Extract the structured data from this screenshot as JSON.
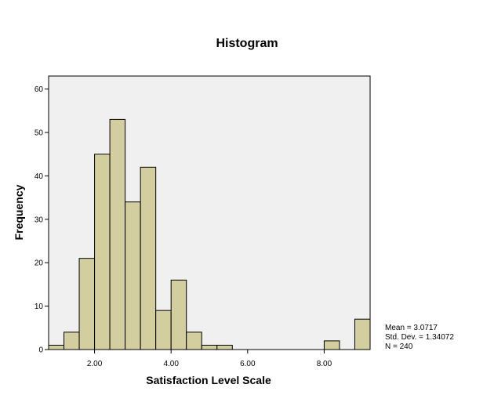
{
  "chart_data": {
    "type": "bar",
    "title": "Histogram",
    "xlabel": "Satisfaction Level Scale",
    "ylabel": "Frequency",
    "xlim": [
      0.8,
      9.2
    ],
    "ylim": [
      0,
      63
    ],
    "bin_width": 0.4,
    "bins": [
      {
        "x0": 0.8,
        "x1": 1.2,
        "value": 1
      },
      {
        "x0": 1.2,
        "x1": 1.6,
        "value": 4
      },
      {
        "x0": 1.6,
        "x1": 2.0,
        "value": 21
      },
      {
        "x0": 2.0,
        "x1": 2.4,
        "value": 45
      },
      {
        "x0": 2.4,
        "x1": 2.8,
        "value": 53
      },
      {
        "x0": 2.8,
        "x1": 3.2,
        "value": 34
      },
      {
        "x0": 3.2,
        "x1": 3.6,
        "value": 42
      },
      {
        "x0": 3.6,
        "x1": 4.0,
        "value": 9
      },
      {
        "x0": 4.0,
        "x1": 4.4,
        "value": 16
      },
      {
        "x0": 4.4,
        "x1": 4.8,
        "value": 4
      },
      {
        "x0": 4.8,
        "x1": 5.2,
        "value": 1
      },
      {
        "x0": 5.2,
        "x1": 5.6,
        "value": 1
      },
      {
        "x0": 5.6,
        "x1": 6.0,
        "value": 0
      },
      {
        "x0": 6.0,
        "x1": 6.4,
        "value": 0
      },
      {
        "x0": 6.4,
        "x1": 6.8,
        "value": 0
      },
      {
        "x0": 6.8,
        "x1": 7.2,
        "value": 0
      },
      {
        "x0": 7.2,
        "x1": 7.6,
        "value": 0
      },
      {
        "x0": 7.6,
        "x1": 8.0,
        "value": 0
      },
      {
        "x0": 8.0,
        "x1": 8.4,
        "value": 2
      },
      {
        "x0": 8.4,
        "x1": 8.8,
        "value": 0
      },
      {
        "x0": 8.8,
        "x1": 9.2,
        "value": 7
      }
    ],
    "x_ticks": [
      {
        "value": 2.0,
        "label": "2.00"
      },
      {
        "value": 4.0,
        "label": "4.00"
      },
      {
        "value": 6.0,
        "label": "6.00"
      },
      {
        "value": 8.0,
        "label": "8.00"
      }
    ],
    "y_ticks": [
      {
        "value": 0,
        "label": "0"
      },
      {
        "value": 10,
        "label": "10"
      },
      {
        "value": 20,
        "label": "20"
      },
      {
        "value": 30,
        "label": "30"
      },
      {
        "value": 40,
        "label": "40"
      },
      {
        "value": 50,
        "label": "50"
      },
      {
        "value": 60,
        "label": "60"
      }
    ],
    "stats": {
      "mean": "Mean = 3.0717",
      "std_dev": "Std. Dev. = 1.34072",
      "n": "N = 240"
    },
    "colors": {
      "bar_fill": "#d3cea0",
      "bar_stroke": "#000000",
      "plot_background": "#f0f0f0",
      "page_background": "#ffffff"
    },
    "grid": false
  }
}
